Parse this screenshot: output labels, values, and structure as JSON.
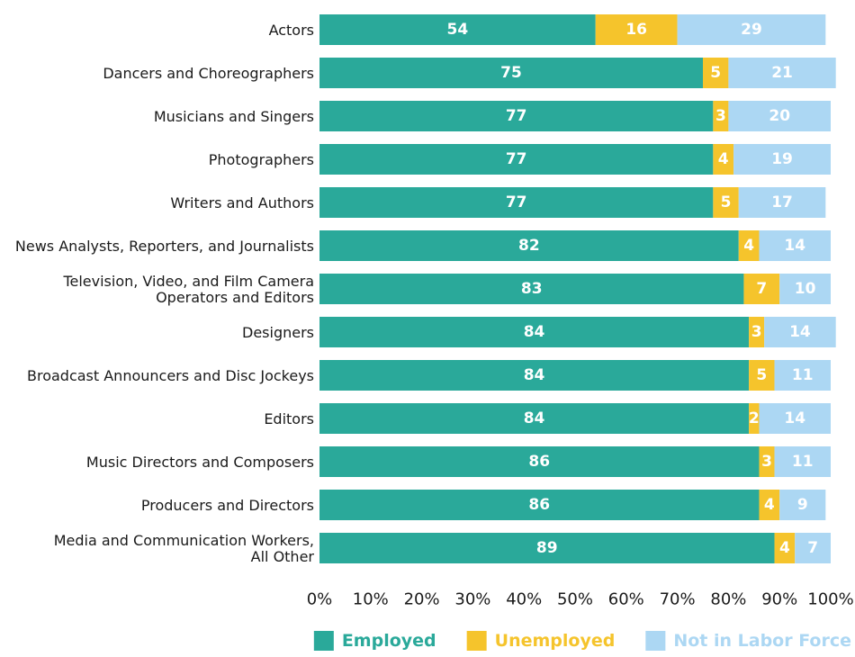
{
  "chart_data": {
    "type": "bar",
    "orientation": "horizontal",
    "stacked": true,
    "categories": [
      [
        "Actors"
      ],
      [
        "Dancers and Choreographers"
      ],
      [
        "Musicians and Singers"
      ],
      [
        "Photographers"
      ],
      [
        "Writers and Authors"
      ],
      [
        "News Analysts, Reporters, and Journalists"
      ],
      [
        "Television, Video, and Film Camera",
        "Operators and Editors"
      ],
      [
        "Designers"
      ],
      [
        "Broadcast Announcers and Disc Jockeys"
      ],
      [
        "Editors"
      ],
      [
        "Music Directors and Composers"
      ],
      [
        "Producers and Directors"
      ],
      [
        "Media and Communication Workers,",
        "All Other"
      ]
    ],
    "series": [
      {
        "name": "Employed",
        "color": "#2aa99a",
        "values": [
          54,
          75,
          77,
          77,
          77,
          82,
          83,
          84,
          84,
          84,
          86,
          86,
          89
        ]
      },
      {
        "name": "Unemployed",
        "color": "#f5c42c",
        "values": [
          16,
          5,
          3,
          4,
          5,
          4,
          7,
          3,
          5,
          2,
          3,
          4,
          4
        ]
      },
      {
        "name": "Not in Labor Force",
        "color": "#acd7f3",
        "values": [
          29,
          21,
          20,
          19,
          17,
          14,
          10,
          14,
          11,
          14,
          11,
          9,
          7
        ]
      }
    ],
    "xticks": [
      "0%",
      "10%",
      "20%",
      "30%",
      "40%",
      "50%",
      "60%",
      "70%",
      "80%",
      "90%",
      "100%"
    ],
    "xlim": [
      0,
      100
    ],
    "grid": false,
    "legend_position": "bottom-right"
  }
}
